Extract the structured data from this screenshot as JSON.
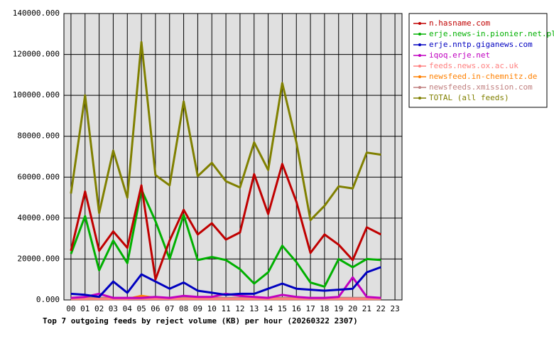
{
  "chart_data": {
    "type": "line",
    "title": "Top 7 outgoing feeds by reject volume (KB) per hour (20260322 2307)",
    "categories": [
      "00",
      "01",
      "02",
      "03",
      "04",
      "05",
      "06",
      "07",
      "08",
      "09",
      "10",
      "11",
      "12",
      "13",
      "14",
      "15",
      "16",
      "17",
      "18",
      "19",
      "20",
      "21",
      "22",
      "23"
    ],
    "ylim": [
      0,
      140000
    ],
    "yticks": [
      {
        "value": 0,
        "label": "0.000"
      },
      {
        "value": 20000,
        "label": "20000.000"
      },
      {
        "value": 40000,
        "label": "40000.000"
      },
      {
        "value": 60000,
        "label": "60000.000"
      },
      {
        "value": 80000,
        "label": "80000.000"
      },
      {
        "value": 100000,
        "label": "100000.000"
      },
      {
        "value": 120000,
        "label": "120000.000"
      },
      {
        "value": 140000,
        "label": "140000.000"
      }
    ],
    "grid": true,
    "legend": "right",
    "background": "#e0e0e0",
    "series": [
      {
        "name": "n.hasname.com",
        "color": "#c00000",
        "values": [
          24000,
          53000,
          24000,
          33500,
          25500,
          56000,
          10000,
          29000,
          44000,
          32000,
          37500,
          29500,
          33000,
          61500,
          42000,
          66500,
          48000,
          23000,
          32000,
          27000,
          19500,
          35500,
          32000,
          null
        ]
      },
      {
        "name": "erje.news-in.pionier.net.pl",
        "color": "#00b000",
        "values": [
          22500,
          41000,
          14500,
          29000,
          18000,
          54000,
          38500,
          20000,
          41500,
          19500,
          21000,
          19500,
          15000,
          8000,
          13500,
          26500,
          18500,
          8500,
          6500,
          20000,
          16000,
          20000,
          19500,
          null
        ]
      },
      {
        "name": "erje.nntp.giganews.com",
        "color": "#0000c0",
        "values": [
          3000,
          2500,
          1500,
          9000,
          3500,
          12500,
          9000,
          5500,
          8500,
          4500,
          3500,
          2500,
          3000,
          3000,
          5500,
          8000,
          5500,
          5000,
          4500,
          5000,
          5500,
          13500,
          16000,
          null
        ]
      },
      {
        "name": "iqoq.erje.net",
        "color": "#c000c0",
        "values": [
          1000,
          1500,
          3000,
          1000,
          1000,
          1000,
          1500,
          1000,
          2000,
          1500,
          1500,
          3000,
          2000,
          1500,
          1000,
          2500,
          1500,
          1000,
          1000,
          1500,
          11000,
          1500,
          1000,
          null
        ]
      },
      {
        "name": "feeds.news.ox.ac.uk",
        "color": "#ff8080",
        "values": [
          500,
          500,
          500,
          500,
          500,
          500,
          500,
          500,
          500,
          500,
          500,
          500,
          500,
          500,
          500,
          500,
          500,
          500,
          500,
          500,
          500,
          500,
          500,
          null
        ]
      },
      {
        "name": "newsfeed.in-chemnitz.de",
        "color": "#ff8000",
        "values": [
          500,
          500,
          500,
          500,
          500,
          2000,
          1000,
          500,
          500,
          500,
          500,
          500,
          500,
          500,
          500,
          500,
          500,
          500,
          500,
          500,
          500,
          500,
          500,
          null
        ]
      },
      {
        "name": "newsfeeds.xmission.com",
        "color": "#c08080",
        "values": [
          1000,
          1000,
          1000,
          1000,
          1000,
          1000,
          1000,
          1000,
          1000,
          1000,
          1000,
          1000,
          1000,
          1000,
          1000,
          1000,
          1000,
          1000,
          1000,
          1000,
          1000,
          1000,
          1000,
          null
        ]
      },
      {
        "name": "TOTAL (all feeds)",
        "color": "#808000",
        "values": [
          52000,
          100000,
          42500,
          73000,
          50000,
          126000,
          61000,
          56000,
          97000,
          60500,
          67000,
          58000,
          55000,
          77000,
          63500,
          106000,
          77000,
          39000,
          46000,
          55500,
          54500,
          72000,
          71000,
          null
        ]
      }
    ]
  }
}
